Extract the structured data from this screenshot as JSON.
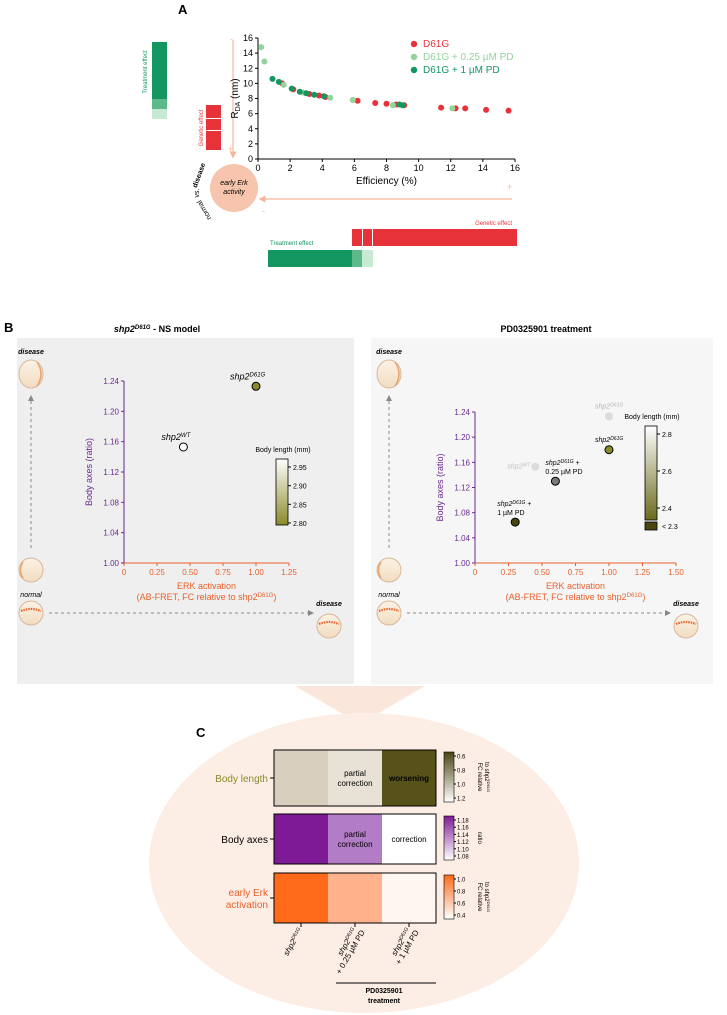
{
  "panels": {
    "a_label": "A",
    "b_label": "B",
    "c_label": "C"
  },
  "colors": {
    "red": "#e8323a",
    "light_green": "#93d49b",
    "dark_green": "#139660",
    "salmon": "#f7c5ad",
    "orange": "#e8612c",
    "purple": "#6a2a8f",
    "olive": "#8a8a2a",
    "grey_bg": "#efefef"
  },
  "panel_a": {
    "treatment_effect_label": "Treatment effect",
    "genetic_effect_label": "Genetic effect",
    "minus": "-",
    "plus": "+",
    "circle_text_line1": "early Erk",
    "circle_text_line2": "activity",
    "arc_disease": "disease",
    "arc_vs": "vs.",
    "arc_normal": "normal",
    "bottom_treatment_label": "Treatment effect",
    "bottom_genetic_label": "Genetic effect"
  },
  "panel_b": {
    "left_title_gene": "shp2",
    "left_title_sup": "D61G",
    "left_title_rest": " - NS model",
    "right_title": "PD0325901 treatment",
    "disease": "disease",
    "normal": "normal",
    "legend_title": "Body length (mm)",
    "left_legend_ticks": [
      "2.95",
      "2.90",
      "2.85",
      "2.80"
    ],
    "right_legend_ticks": [
      "2.8",
      "2.6",
      "2.4"
    ],
    "right_legend_below": "< 2.3",
    "label_wt": "shp2",
    "label_wt_sup": "WT",
    "label_d61g": "shp2",
    "label_d61g_sup": "D61G",
    "label_025_line1": "shp2",
    "label_025_sup": "D61G",
    "label_025_plus": " +",
    "label_025_line2": "0.25 µM PD",
    "label_1_line1": "shp2",
    "label_1_sup": "D61G",
    "label_1_plus": " +",
    "label_1_line2": "1 µM PD"
  },
  "panel_c": {
    "rows": [
      {
        "label": "Body length",
        "cells": [
          "",
          "partial\ncorrection",
          "worsening"
        ]
      },
      {
        "label": "Body axes",
        "cells": [
          "",
          "partial\ncorrection",
          "correction"
        ]
      },
      {
        "label": "early Erk\nactivation",
        "cells": [
          "",
          "",
          ""
        ]
      }
    ],
    "cell_colors": [
      [
        "#d8cfbe",
        "#e8e2d6",
        "#57521a"
      ],
      [
        "#7e1a96",
        "#b37cc6",
        "#ffffff"
      ],
      [
        "#ff6a1a",
        "#ffb28c",
        "#fff6f2"
      ]
    ],
    "col_labels": [
      {
        "line1": "shp2",
        "sup": "D61G",
        "line2": ""
      },
      {
        "line1": "shp2",
        "sup": "D61G",
        "line2": "+ 0.25 µM PD"
      },
      {
        "line1": "shp2",
        "sup": "D61G",
        "line2": "+ 1 µM PD"
      }
    ],
    "bracket_line1": "PD0325901",
    "bracket_line2": "treatment",
    "legends": [
      {
        "ticks": [
          "0.6",
          "0.8",
          "1.0",
          "1.2"
        ],
        "title_line1": "FC relative",
        "title_line2": "to shp2",
        "title_sup": "D61G"
      },
      {
        "ticks": [
          "1.18",
          "1.16",
          "1.14",
          "1.12",
          "1.10",
          "1.08"
        ],
        "title_line1": "ratio",
        "title_line2": "",
        "title_sup": ""
      },
      {
        "ticks": [
          "1.0",
          "0.8",
          "0.6",
          "0.4"
        ],
        "title_line1": "FC relative",
        "title_line2": "to shp2",
        "title_sup": "D61G"
      }
    ]
  },
  "chart_data": [
    {
      "type": "scatter",
      "panel": "A",
      "xlabel": "Efficiency (%)",
      "ylabel": "R",
      "ylabel_sub": "DA",
      "ylabel_unit": " (nm)",
      "xlim": [
        0,
        16
      ],
      "ylim": [
        0,
        16
      ],
      "xticks": [
        "0",
        "2",
        "4",
        "6",
        "8",
        "10",
        "12",
        "14",
        "16"
      ],
      "yticks": [
        "0",
        "2",
        "4",
        "6",
        "8",
        "10",
        "12",
        "14",
        "16"
      ],
      "legend_position": "top-right",
      "series": [
        {
          "name": "D61G",
          "color": "#e8323a",
          "points": [
            [
              1.5,
              10
            ],
            [
              2.2,
              9.2
            ],
            [
              3.2,
              8.6
            ],
            [
              3.8,
              8.4
            ],
            [
              4.2,
              8.2
            ],
            [
              6.2,
              7.7
            ],
            [
              7.3,
              7.4
            ],
            [
              8.0,
              7.3
            ],
            [
              8.6,
              7.2
            ],
            [
              9.1,
              7.1
            ],
            [
              11.4,
              6.8
            ],
            [
              12.3,
              6.7
            ],
            [
              12.9,
              6.7
            ],
            [
              14.2,
              6.5
            ],
            [
              15.6,
              6.4
            ]
          ]
        },
        {
          "name": "D61G + 0.25 µM PD",
          "color": "#93d49b",
          "points": [
            [
              0.2,
              14.8
            ],
            [
              0.4,
              12.9
            ],
            [
              1.6,
              9.8
            ],
            [
              2.8,
              8.8
            ],
            [
              4.5,
              8.1
            ],
            [
              5.9,
              7.8
            ],
            [
              8.4,
              7.1
            ],
            [
              12.1,
              6.7
            ]
          ]
        },
        {
          "name": "D61G + 1 µM PD",
          "color": "#139660",
          "points": [
            [
              0.9,
              10.6
            ],
            [
              1.3,
              10.2
            ],
            [
              2.1,
              9.3
            ],
            [
              2.6,
              8.9
            ],
            [
              3.0,
              8.7
            ],
            [
              3.5,
              8.5
            ],
            [
              4.1,
              8.3
            ],
            [
              8.8,
              7.2
            ],
            [
              9.0,
              7.1
            ]
          ]
        }
      ]
    },
    {
      "type": "scatter",
      "panel": "B-left",
      "xlabel": "ERK activation",
      "xlabel2": "(AB-FRET, FC relative to shp2",
      "xlabel2_sup": "D61G",
      "xlabel2_end": ")",
      "ylabel": "Body axes (ratio)",
      "xlim": [
        0,
        1.25
      ],
      "ylim": [
        1.0,
        1.24
      ],
      "xticks": [
        "0",
        "0.25",
        "0.50",
        "0.75",
        "1.00",
        "1.25"
      ],
      "yticks": [
        "1.00",
        "1.04",
        "1.08",
        "1.12",
        "1.16",
        "1.20",
        "1.24"
      ],
      "points": [
        {
          "label": "shp2 WT",
          "x": 0.45,
          "y": 1.153,
          "body_length": 2.97
        },
        {
          "label": "shp2 D61G",
          "x": 1.0,
          "y": 1.233,
          "body_length": 2.8
        }
      ]
    },
    {
      "type": "scatter",
      "panel": "B-right",
      "xlabel": "ERK activation",
      "xlabel2": "(AB-FRET, FC relative to shp2",
      "xlabel2_sup": "D61G",
      "xlabel2_end": ")",
      "ylabel": "Body axes (ratio)",
      "xlim": [
        0,
        1.5
      ],
      "ylim": [
        1.0,
        1.24
      ],
      "xticks": [
        "0",
        "0.25",
        "0.50",
        "0.75",
        "1.00",
        "1.25",
        "1.50"
      ],
      "yticks": [
        "1.00",
        "1.04",
        "1.08",
        "1.12",
        "1.16",
        "1.20",
        "1.24"
      ],
      "points": [
        {
          "label": "shp2 WT (ghost)",
          "x": 0.45,
          "y": 1.153,
          "ghost": true
        },
        {
          "label": "shp2 D61G (ghost)",
          "x": 1.0,
          "y": 1.233,
          "ghost": true
        },
        {
          "label": "shp2 D61G",
          "x": 1.0,
          "y": 1.18,
          "body_length": 2.6
        },
        {
          "label": "shp2 D61G + 0.25 µM PD",
          "x": 0.6,
          "y": 1.13,
          "body_length": 2.4
        },
        {
          "label": "shp2 D61G + 1 µM PD",
          "x": 0.3,
          "y": 1.065,
          "body_length": 2.25
        }
      ]
    }
  ]
}
